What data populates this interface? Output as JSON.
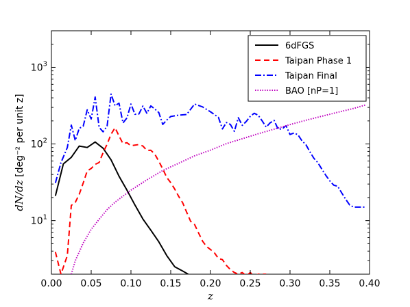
{
  "chart_data": {
    "type": "line",
    "title": "",
    "xlabel": "z",
    "ylabel_math": "dN/dz",
    "ylabel_rest": " [deg⁻² per unit z]",
    "xlim": [
      0.0,
      0.4
    ],
    "ylim": [
      2,
      3000
    ],
    "yscale": "log",
    "grid": false,
    "legend_position": "top-right",
    "x_ticks": [
      0.0,
      0.05,
      0.1,
      0.15,
      0.2,
      0.25,
      0.3,
      0.35,
      0.4
    ],
    "x_tick_labels": [
      "0.00",
      "0.05",
      "0.10",
      "0.15",
      "0.20",
      "0.25",
      "0.30",
      "0.35",
      "0.40"
    ],
    "y_ticks": [
      10,
      100,
      1000
    ],
    "y_tick_labels": [
      {
        "base": "10",
        "exp": "1"
      },
      {
        "base": "10",
        "exp": "2"
      },
      {
        "base": "10",
        "exp": "3"
      }
    ],
    "series": [
      {
        "name": "6dFGS",
        "color": "#000000",
        "dash": "solid",
        "x": [
          0.005,
          0.015,
          0.025,
          0.035,
          0.045,
          0.055,
          0.065,
          0.075,
          0.085,
          0.095,
          0.105,
          0.115,
          0.125,
          0.135,
          0.145,
          0.155,
          0.165,
          0.172
        ],
        "y": [
          21,
          55,
          67,
          94,
          90,
          106,
          88,
          62,
          38,
          25,
          16,
          10.5,
          7.5,
          5.3,
          3.5,
          2.5,
          2.2,
          2.0
        ]
      },
      {
        "name": "Taipan Phase 1",
        "color": "#ff0000",
        "dash": "dashed",
        "x": [
          0.005,
          0.012,
          0.02,
          0.025,
          0.03,
          0.035,
          0.04,
          0.045,
          0.05,
          0.055,
          0.06,
          0.065,
          0.07,
          0.075,
          0.08,
          0.085,
          0.09,
          0.095,
          0.1,
          0.105,
          0.11,
          0.115,
          0.12,
          0.125,
          0.13,
          0.135,
          0.14,
          0.145,
          0.15,
          0.155,
          0.16,
          0.165,
          0.17,
          0.175,
          0.18,
          0.185,
          0.19,
          0.195,
          0.2,
          0.205,
          0.21,
          0.215,
          0.22,
          0.225,
          0.23,
          0.235,
          0.24,
          0.245,
          0.25,
          0.255,
          0.26,
          0.265,
          0.27
        ],
        "y": [
          3.9,
          2.0,
          3.5,
          15.8,
          17.3,
          22.1,
          31.0,
          44.5,
          47.9,
          54.2,
          57.4,
          77.3,
          99.3,
          134,
          163,
          127,
          101,
          104,
          94.7,
          96.5,
          98.4,
          94.0,
          82.4,
          82.8,
          73.7,
          59.5,
          47.2,
          36.6,
          31.3,
          25.8,
          20.7,
          17.1,
          12.9,
          9.8,
          8.9,
          6.9,
          5.4,
          4.6,
          4.2,
          3.8,
          3.2,
          3.1,
          2.6,
          2.3,
          2.1,
          2.0,
          2.1,
          1.9,
          2.1,
          1.9,
          2.0,
          2.0,
          2.0
        ]
      },
      {
        "name": "Taipan Final",
        "color": "#0000ff",
        "dash": "dashdot",
        "x": [
          0.005,
          0.012,
          0.02,
          0.025,
          0.03,
          0.035,
          0.04,
          0.045,
          0.05,
          0.055,
          0.06,
          0.065,
          0.07,
          0.075,
          0.08,
          0.085,
          0.09,
          0.095,
          0.1,
          0.105,
          0.11,
          0.115,
          0.12,
          0.125,
          0.13,
          0.135,
          0.14,
          0.145,
          0.15,
          0.16,
          0.17,
          0.18,
          0.19,
          0.2,
          0.21,
          0.215,
          0.22,
          0.225,
          0.23,
          0.235,
          0.24,
          0.245,
          0.25,
          0.255,
          0.26,
          0.265,
          0.27,
          0.275,
          0.28,
          0.285,
          0.29,
          0.295,
          0.3,
          0.305,
          0.31,
          0.315,
          0.32,
          0.325,
          0.33,
          0.335,
          0.34,
          0.345,
          0.35,
          0.355,
          0.36,
          0.365,
          0.37,
          0.375,
          0.38,
          0.385,
          0.39,
          0.395
        ],
        "y": [
          31,
          57,
          90,
          176,
          111,
          160,
          171,
          279,
          212,
          410,
          165,
          144,
          171,
          448,
          315,
          341,
          188,
          219,
          332,
          244,
          246,
          312,
          252,
          314,
          286,
          257,
          180,
          205,
          228,
          238,
          242,
          332,
          305,
          263,
          222,
          157,
          191,
          180,
          146,
          220,
          175,
          197,
          229,
          252,
          237,
          200,
          166,
          189,
          203,
          156,
          157,
          173,
          133,
          139,
          132,
          110,
          98,
          79,
          65,
          57,
          47,
          39,
          33,
          29,
          28,
          23,
          19,
          16,
          15,
          15,
          15,
          15
        ]
      },
      {
        "name": "BAO [nP=1]",
        "color": "#bf00bf",
        "dash": "dotted",
        "x": [
          0.025,
          0.03,
          0.04,
          0.05,
          0.06,
          0.07,
          0.08,
          0.1,
          0.12,
          0.14,
          0.16,
          0.18,
          0.2,
          0.22,
          0.24,
          0.26,
          0.28,
          0.3,
          0.32,
          0.34,
          0.36,
          0.38,
          0.395
        ],
        "y": [
          2.0,
          3.0,
          5.1,
          7.7,
          10.4,
          13.9,
          17.4,
          25,
          34,
          45,
          56,
          70,
          83,
          101,
          117,
          136,
          156,
          179,
          204,
          230,
          259,
          291,
          323
        ]
      }
    ]
  }
}
